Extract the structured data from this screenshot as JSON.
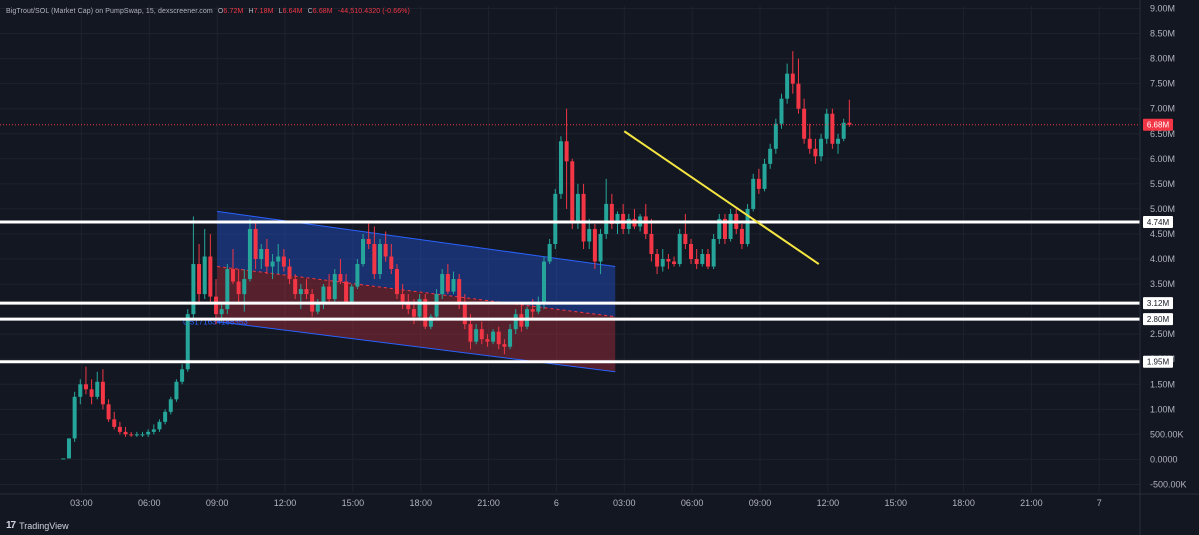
{
  "legend": {
    "symbol": "BigTrout/SOL (Market Cap) on PumpSwap, 15, dexscreener.com",
    "open": "6.72M",
    "high": "7.18M",
    "low": "6.64M",
    "close": "6.68M",
    "change": "-44,510.4320 (-0.66%)"
  },
  "brand": {
    "name": "TradingView",
    "logo_icon": "tradingview-logo-icon"
  },
  "colors": {
    "background": "#131722",
    "up": "#26a69a",
    "down": "#f23645",
    "level": "#ffffff",
    "trendline": "#f5e642",
    "channel_upper": "#2962ff",
    "channel_lower": "#f23645"
  },
  "chart_data": {
    "type": "candlestick",
    "y_unit": "market cap",
    "ylim": [
      -0.65,
      9.05
    ],
    "y_ticks": [
      {
        "v": 9.0,
        "label": "9.00M"
      },
      {
        "v": 8.5,
        "label": "8.50M"
      },
      {
        "v": 8.0,
        "label": "8.00M"
      },
      {
        "v": 7.5,
        "label": "7.50M"
      },
      {
        "v": 7.0,
        "label": "7.00M"
      },
      {
        "v": 6.5,
        "label": "6.50M"
      },
      {
        "v": 6.0,
        "label": "6.00M"
      },
      {
        "v": 5.5,
        "label": "5.50M"
      },
      {
        "v": 5.0,
        "label": "5.00M"
      },
      {
        "v": 4.5,
        "label": "4.50M"
      },
      {
        "v": 4.0,
        "label": "4.00M"
      },
      {
        "v": 3.5,
        "label": "3.50M"
      },
      {
        "v": 2.5,
        "label": "2.50M"
      },
      {
        "v": 2.0,
        "label": "2.00M"
      },
      {
        "v": 1.5,
        "label": "1.50M"
      },
      {
        "v": 1.0,
        "label": "1.00M"
      },
      {
        "v": 0.5,
        "label": "500.00K"
      },
      {
        "v": 0.0,
        "label": "0.0000"
      },
      {
        "v": -0.5,
        "label": "-500.00K"
      }
    ],
    "x_ticks": [
      {
        "h": 3,
        "label": "03:00"
      },
      {
        "h": 6,
        "label": "06:00"
      },
      {
        "h": 9,
        "label": "09:00"
      },
      {
        "h": 12,
        "label": "12:00"
      },
      {
        "h": 15,
        "label": "15:00"
      },
      {
        "h": 18,
        "label": "18:00"
      },
      {
        "h": 21,
        "label": "21:00"
      },
      {
        "h": 24,
        "label": "6"
      },
      {
        "h": 27,
        "label": "03:00"
      },
      {
        "h": 30,
        "label": "06:00"
      },
      {
        "h": 33,
        "label": "09:00"
      },
      {
        "h": 36,
        "label": "12:00"
      },
      {
        "h": 39,
        "label": "15:00"
      },
      {
        "h": 42,
        "label": "18:00"
      },
      {
        "h": 45,
        "label": "21:00"
      },
      {
        "h": 48,
        "label": "7"
      }
    ],
    "xlim_hours": [
      -0.6,
      49.8
    ],
    "candle_interval_hours": 0.25,
    "candles_t0_hours": 2.2,
    "candles_ohlc": [
      [
        0.02,
        0.02,
        0.02,
        0.02
      ],
      [
        0.02,
        0.42,
        0.02,
        0.42
      ],
      [
        0.42,
        1.35,
        0.35,
        1.25
      ],
      [
        1.25,
        1.6,
        1.1,
        1.5
      ],
      [
        1.5,
        1.85,
        1.3,
        1.4
      ],
      [
        1.4,
        1.6,
        1.1,
        1.25
      ],
      [
        1.25,
        1.75,
        1.2,
        1.55
      ],
      [
        1.55,
        1.8,
        1.0,
        1.1
      ],
      [
        1.1,
        1.2,
        0.75,
        0.8
      ],
      [
        0.8,
        0.95,
        0.6,
        0.65
      ],
      [
        0.65,
        0.75,
        0.5,
        0.55
      ],
      [
        0.55,
        0.65,
        0.45,
        0.5
      ],
      [
        0.5,
        0.55,
        0.45,
        0.48
      ],
      [
        0.48,
        0.55,
        0.45,
        0.5
      ],
      [
        0.5,
        0.55,
        0.45,
        0.5
      ],
      [
        0.5,
        0.6,
        0.45,
        0.55
      ],
      [
        0.55,
        0.7,
        0.5,
        0.6
      ],
      [
        0.6,
        0.8,
        0.55,
        0.75
      ],
      [
        0.75,
        1.0,
        0.7,
        0.95
      ],
      [
        0.95,
        1.25,
        0.9,
        1.2
      ],
      [
        1.2,
        1.6,
        1.15,
        1.55
      ],
      [
        1.55,
        1.9,
        1.5,
        1.8
      ],
      [
        1.8,
        3.0,
        1.75,
        2.9
      ],
      [
        2.9,
        4.85,
        2.8,
        3.9
      ],
      [
        3.9,
        4.3,
        3.1,
        3.3
      ],
      [
        3.3,
        4.6,
        3.2,
        4.05
      ],
      [
        4.05,
        4.5,
        3.1,
        3.25
      ],
      [
        3.25,
        3.6,
        2.7,
        2.9
      ],
      [
        2.9,
        3.1,
        2.75,
        3.0
      ],
      [
        3.0,
        3.9,
        2.9,
        3.8
      ],
      [
        3.8,
        4.2,
        3.5,
        3.55
      ],
      [
        3.55,
        3.8,
        3.1,
        3.3
      ],
      [
        3.3,
        3.8,
        2.95,
        3.6
      ],
      [
        3.6,
        4.8,
        3.55,
        4.6
      ],
      [
        4.6,
        4.75,
        3.8,
        4.0
      ],
      [
        4.0,
        4.3,
        3.8,
        4.2
      ],
      [
        4.2,
        4.4,
        3.7,
        3.85
      ],
      [
        3.85,
        4.1,
        3.6,
        3.95
      ],
      [
        3.95,
        4.3,
        3.7,
        4.05
      ],
      [
        4.05,
        4.2,
        3.75,
        3.85
      ],
      [
        3.85,
        4.0,
        3.5,
        3.6
      ],
      [
        3.6,
        3.7,
        3.2,
        3.3
      ],
      [
        3.3,
        3.5,
        3.0,
        3.4
      ],
      [
        3.4,
        3.6,
        3.2,
        3.3
      ],
      [
        3.3,
        3.4,
        2.85,
        2.95
      ],
      [
        2.95,
        3.2,
        2.9,
        3.1
      ],
      [
        3.1,
        3.5,
        3.0,
        3.45
      ],
      [
        3.45,
        3.7,
        3.1,
        3.2
      ],
      [
        3.2,
        3.8,
        3.15,
        3.7
      ],
      [
        3.7,
        4.0,
        3.5,
        3.55
      ],
      [
        3.55,
        3.7,
        3.1,
        3.15
      ],
      [
        3.15,
        3.5,
        3.1,
        3.45
      ],
      [
        3.45,
        4.0,
        3.4,
        3.9
      ],
      [
        3.9,
        4.5,
        3.85,
        4.4
      ],
      [
        4.4,
        4.75,
        4.2,
        4.3
      ],
      [
        4.3,
        4.65,
        3.6,
        3.7
      ],
      [
        3.7,
        4.4,
        3.6,
        4.3
      ],
      [
        4.3,
        4.55,
        3.95,
        4.05
      ],
      [
        4.05,
        4.3,
        3.7,
        3.8
      ],
      [
        3.8,
        3.9,
        3.2,
        3.3
      ],
      [
        3.3,
        3.5,
        3.0,
        3.15
      ],
      [
        3.15,
        3.3,
        2.9,
        3.0
      ],
      [
        3.0,
        3.2,
        2.7,
        2.85
      ],
      [
        2.85,
        3.3,
        2.8,
        3.2
      ],
      [
        3.2,
        3.3,
        2.6,
        2.65
      ],
      [
        2.65,
        2.9,
        2.6,
        2.85
      ],
      [
        2.85,
        3.4,
        2.8,
        3.3
      ],
      [
        3.3,
        3.8,
        3.2,
        3.7
      ],
      [
        3.7,
        3.9,
        3.3,
        3.35
      ],
      [
        3.35,
        3.75,
        3.3,
        3.6
      ],
      [
        3.6,
        3.7,
        3.0,
        3.1
      ],
      [
        3.1,
        3.3,
        2.6,
        2.7
      ],
      [
        2.7,
        2.9,
        2.2,
        2.35
      ],
      [
        2.35,
        2.7,
        2.3,
        2.6
      ],
      [
        2.6,
        2.75,
        2.3,
        2.4
      ],
      [
        2.4,
        2.5,
        2.25,
        2.35
      ],
      [
        2.35,
        2.6,
        2.3,
        2.55
      ],
      [
        2.55,
        2.65,
        2.2,
        2.3
      ],
      [
        2.3,
        2.4,
        2.1,
        2.25
      ],
      [
        2.25,
        2.7,
        2.2,
        2.6
      ],
      [
        2.6,
        3.0,
        2.5,
        2.9
      ],
      [
        2.9,
        3.1,
        2.55,
        2.65
      ],
      [
        2.65,
        3.05,
        2.6,
        3.0
      ],
      [
        3.0,
        3.2,
        2.8,
        2.95
      ],
      [
        2.95,
        3.25,
        2.9,
        3.1
      ],
      [
        3.1,
        4.05,
        3.0,
        3.95
      ],
      [
        3.95,
        4.4,
        3.9,
        4.3
      ],
      [
        4.3,
        5.4,
        4.2,
        5.3
      ],
      [
        5.3,
        6.45,
        5.2,
        6.35
      ],
      [
        6.35,
        7.0,
        5.0,
        5.95
      ],
      [
        5.95,
        6.0,
        4.6,
        4.75
      ],
      [
        4.75,
        5.5,
        4.6,
        5.3
      ],
      [
        5.3,
        5.5,
        4.2,
        4.35
      ],
      [
        4.35,
        4.8,
        4.2,
        4.6
      ],
      [
        4.6,
        4.7,
        3.8,
        3.95
      ],
      [
        3.95,
        4.6,
        3.7,
        4.5
      ],
      [
        4.5,
        5.6,
        4.4,
        5.1
      ],
      [
        5.1,
        5.3,
        4.6,
        4.7
      ],
      [
        4.7,
        4.95,
        4.5,
        4.9
      ],
      [
        4.9,
        5.1,
        4.5,
        4.6
      ],
      [
        4.6,
        4.9,
        4.5,
        4.8
      ],
      [
        4.8,
        5.0,
        4.6,
        4.65
      ],
      [
        4.65,
        4.9,
        4.55,
        4.85
      ],
      [
        4.85,
        5.1,
        4.4,
        4.5
      ],
      [
        4.5,
        4.8,
        3.95,
        4.1
      ],
      [
        4.1,
        4.2,
        3.7,
        3.85
      ],
      [
        3.85,
        4.2,
        3.75,
        4.0
      ],
      [
        4.0,
        4.1,
        3.8,
        3.95
      ],
      [
        3.95,
        4.05,
        3.85,
        3.9
      ],
      [
        3.9,
        4.6,
        3.85,
        4.5
      ],
      [
        4.5,
        4.9,
        4.2,
        4.3
      ],
      [
        4.3,
        4.4,
        3.9,
        4.0
      ],
      [
        4.0,
        4.2,
        3.8,
        3.9
      ],
      [
        3.9,
        4.2,
        3.85,
        4.1
      ],
      [
        4.1,
        4.2,
        3.8,
        3.85
      ],
      [
        3.85,
        4.5,
        3.8,
        4.4
      ],
      [
        4.4,
        4.9,
        4.3,
        4.8
      ],
      [
        4.8,
        4.9,
        4.3,
        4.4
      ],
      [
        4.4,
        5.0,
        4.35,
        4.9
      ],
      [
        4.9,
        5.0,
        4.5,
        4.6
      ],
      [
        4.6,
        4.7,
        4.2,
        4.3
      ],
      [
        4.3,
        5.1,
        4.25,
        5.0
      ],
      [
        5.0,
        5.7,
        4.95,
        5.6
      ],
      [
        5.6,
        5.8,
        5.3,
        5.4
      ],
      [
        5.4,
        6.0,
        5.35,
        5.9
      ],
      [
        5.9,
        6.3,
        5.8,
        6.2
      ],
      [
        6.2,
        6.8,
        6.1,
        6.7
      ],
      [
        6.7,
        7.3,
        6.6,
        7.2
      ],
      [
        7.2,
        7.9,
        7.1,
        7.7
      ],
      [
        7.7,
        8.15,
        7.3,
        7.5
      ],
      [
        7.5,
        8.0,
        6.9,
        7.0
      ],
      [
        7.0,
        7.2,
        6.3,
        6.4
      ],
      [
        6.4,
        6.7,
        6.1,
        6.2
      ],
      [
        6.2,
        6.4,
        5.9,
        6.05
      ],
      [
        6.05,
        6.5,
        5.95,
        6.4
      ],
      [
        6.4,
        7.0,
        6.3,
        6.9
      ],
      [
        6.9,
        7.0,
        6.2,
        6.3
      ],
      [
        6.3,
        6.5,
        6.1,
        6.4
      ],
      [
        6.4,
        6.8,
        6.35,
        6.72
      ],
      [
        6.72,
        7.18,
        6.64,
        6.68
      ]
    ],
    "price_levels": [
      {
        "v": 4.74,
        "label": "4.74M"
      },
      {
        "v": 3.12,
        "label": "3.12M"
      },
      {
        "v": 2.8,
        "label": "2.80M"
      },
      {
        "v": 1.95,
        "label": "1.95M"
      }
    ],
    "current_price": {
      "v": 6.68,
      "label": "6.68M"
    },
    "trendline": {
      "from": {
        "h": 27.0,
        "v": 6.55
      },
      "to": {
        "h": 35.6,
        "v": 3.9
      }
    },
    "channel": {
      "upper": {
        "from": {
          "h": 9.0,
          "v": 4.95
        },
        "to": {
          "h": 26.6,
          "v": 3.85
        }
      },
      "mid": {
        "from": {
          "h": 9.0,
          "v": 3.85
        },
        "to": {
          "h": 26.6,
          "v": 2.85
        }
      },
      "lower": {
        "from": {
          "h": 9.0,
          "v": 2.75
        },
        "to": {
          "h": 26.6,
          "v": 1.75
        }
      }
    },
    "channel_label": "0.5171634188353"
  }
}
